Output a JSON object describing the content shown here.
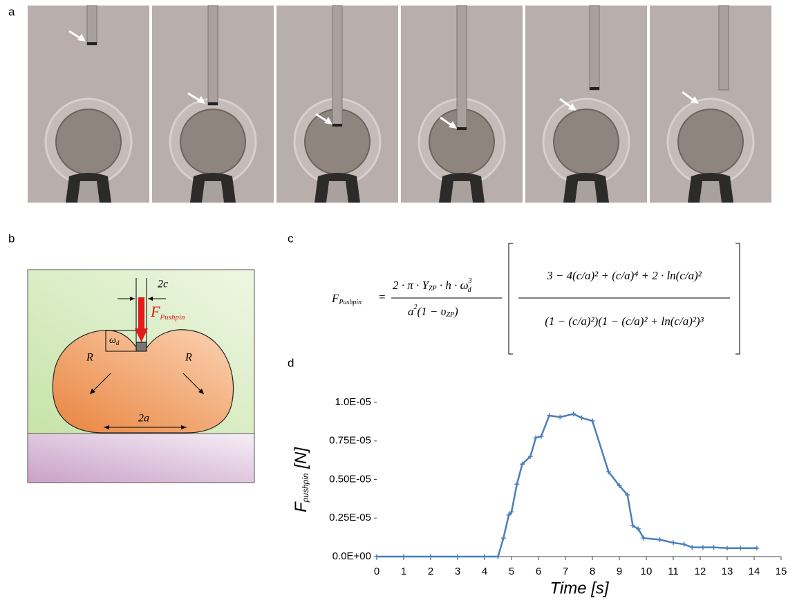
{
  "panel_labels": [
    "a",
    "b",
    "c",
    "d"
  ],
  "diagram": {
    "gap_label": "2c",
    "force": "F",
    "force_sub": "Pushpin",
    "depth": "ω",
    "depth_sub": "d",
    "radius_left": "R",
    "radius_right": "R",
    "contact_label": "2a"
  },
  "equation": {
    "lhs": "F",
    "lhs_sub": "Pushpin",
    "eq": "=",
    "num": "2 · π · Y",
    "num_sub": "ZP",
    "num2": " · h · ω",
    "num_sup": "3",
    "num_sub2": "d",
    "den": "a",
    "den_sup": "2",
    "den2": "(1 − υ",
    "den_sub": "ZP",
    "den3": ")",
    "inner_num": "3 − 4(c/a)² + (c/a)⁴ + 2 · ln(c/a)²",
    "inner_den": "(1 − (c/a)²)(1 − (c/a)² + ln(c/a)²)³"
  },
  "chart_data": {
    "type": "line",
    "x_label": "Time  [s]",
    "y_label": "F",
    "y_label_sub": "pushpin",
    "y_label_unit": " [N]",
    "xlim": [
      0,
      15
    ],
    "xticks": [
      0,
      1,
      2,
      3,
      4,
      5,
      6,
      7,
      8,
      9,
      10,
      11,
      12,
      13,
      14,
      15
    ],
    "ylim": [
      0,
      1e-05
    ],
    "yticks": [
      {
        "value": 0,
        "label": "0.0E+00"
      },
      {
        "value": 2.5e-06,
        "label": "0.25E-05"
      },
      {
        "value": 5e-06,
        "label": "0.50E-05"
      },
      {
        "value": 7.5e-06,
        "label": "0.75E-05"
      },
      {
        "value": 1e-05,
        "label": "1.0E-05"
      }
    ],
    "x": [
      0,
      1,
      2,
      3,
      4,
      4.5,
      4.7,
      4.9,
      5.0,
      5.2,
      5.4,
      5.7,
      5.9,
      6.1,
      6.4,
      6.8,
      7.3,
      7.6,
      8.0,
      8.6,
      9.0,
      9.3,
      9.5,
      9.7,
      9.9,
      10.5,
      11.0,
      11.4,
      11.7,
      12.1,
      12.5,
      13.0,
      13.5,
      14.1
    ],
    "series": [
      {
        "color": "#4a7ebb",
        "values": [
          0,
          0,
          0,
          0,
          0,
          0,
          1.2e-06,
          2.7e-06,
          2.9e-06,
          4.7e-06,
          6e-06,
          6.5e-06,
          7.7e-06,
          7.8e-06,
          9.15e-06,
          9.05e-06,
          9.25e-06,
          9e-06,
          8.8e-06,
          5.5e-06,
          4.6e-06,
          4e-06,
          2e-06,
          1.8e-06,
          1.2e-06,
          1.1e-06,
          9e-07,
          8e-07,
          6e-07,
          6e-07,
          6e-07,
          5.5e-07,
          5.5e-07,
          5.5e-07
        ]
      }
    ]
  }
}
